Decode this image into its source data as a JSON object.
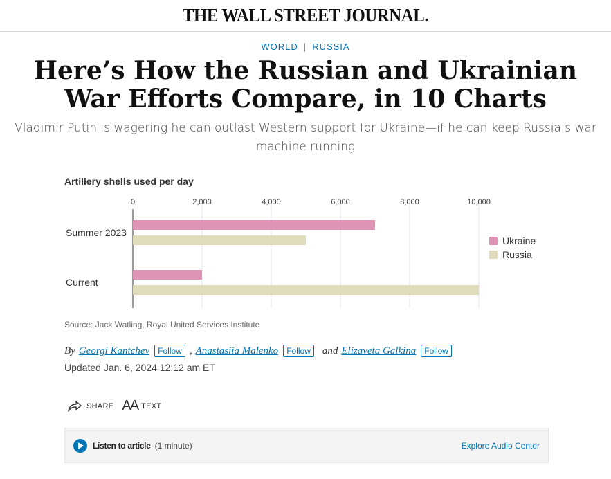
{
  "masthead": {
    "logo": "THE WALL STREET JOURNAL."
  },
  "tags": {
    "world": "WORLD",
    "russia": "RUSSIA"
  },
  "headline": {
    "line1": "Here’s How the Russian and Ukrainian",
    "line2": "War Efforts Compare, in 10 Charts"
  },
  "dek": {
    "line1": "Vladimir Putin is wagering he can outlast Western support for Ukraine—if he can keep Russia’s war",
    "line2": "machine running"
  },
  "chart_data": {
    "type": "bar",
    "orientation": "horizontal",
    "title": "Artillery shells used per day",
    "categories": [
      "Summer 2023",
      "Current"
    ],
    "series": [
      {
        "name": "Ukraine",
        "color": "#df94b6",
        "values": [
          7000,
          2000
        ]
      },
      {
        "name": "Russia",
        "color": "#e0dbb9",
        "values": [
          5000,
          10000
        ]
      }
    ],
    "xticks": [
      "0",
      "2,000",
      "4,000",
      "6,000",
      "8,000",
      "10,000"
    ],
    "xtick_values": [
      0,
      2000,
      4000,
      6000,
      8000,
      10000
    ],
    "xlim": [
      0,
      10000
    ],
    "grid": true,
    "legend_position": "right",
    "source": "Source: Jack Watling, Royal United Services Institute"
  },
  "byline": {
    "by": "By",
    "author1": "Georgi Kantchev",
    "sep": ",",
    "author2": "Anastasiia Malenko",
    "and": "and",
    "author3": "Elizaveta Galkina",
    "follow": "Follow"
  },
  "updated": "Updated Jan. 6, 2024 12:12 am ET",
  "tools": {
    "share": "SHARE",
    "text_icon": "AA",
    "text": "TEXT"
  },
  "audio": {
    "listen": "Listen to article",
    "duration": "(1 minute)",
    "explore": "Explore Audio Center"
  }
}
